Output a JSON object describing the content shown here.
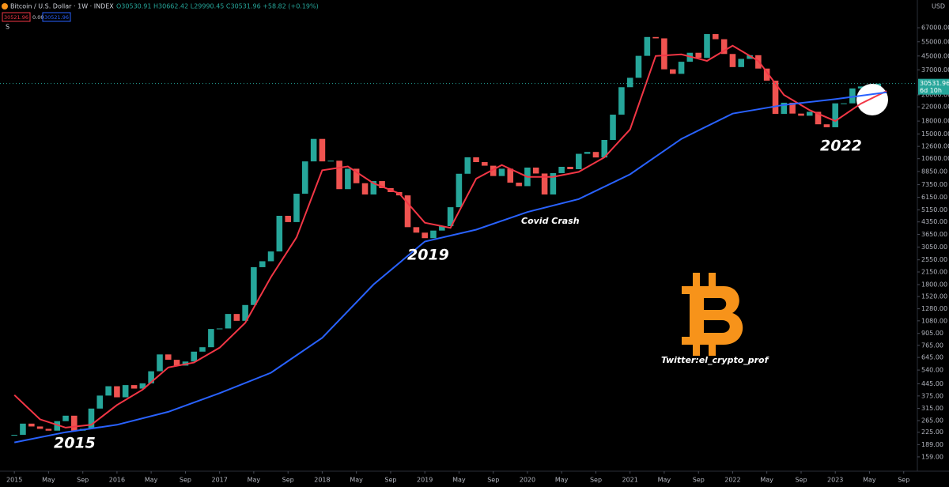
{
  "header": {
    "symbol": "Bitcoin / U.S. Dollar · 1W · INDEX",
    "ohlc": "O30530.91 H30662.42 L29990.45 C30531.96 +58.82 (+0.19%)",
    "ma_fast": "30521.96",
    "ma_mid": "0.00",
    "ma_slow": "30521.96",
    "toggle": "S",
    "currency": "USD"
  },
  "chart_data": {
    "type": "candlestick",
    "title": "Bitcoin / U.S. Dollar · 1W · INDEX",
    "log_scale": true,
    "up_color": "#26a69a",
    "down_color": "#ef5350",
    "x": [
      2015,
      2015.083,
      2015.167,
      2015.25,
      2015.333,
      2015.417,
      2015.5,
      2015.583,
      2015.667,
      2015.75,
      2015.833,
      2015.917,
      2016,
      2016.083,
      2016.167,
      2016.25,
      2016.333,
      2016.417,
      2016.5,
      2016.583,
      2016.667,
      2016.75,
      2016.833,
      2016.917,
      2017,
      2017.083,
      2017.167,
      2017.25,
      2017.333,
      2017.417,
      2017.5,
      2017.583,
      2017.667,
      2017.75,
      2017.833,
      2017.917,
      2018,
      2018.083,
      2018.167,
      2018.25,
      2018.333,
      2018.417,
      2018.5,
      2018.583,
      2018.667,
      2018.75,
      2018.833,
      2018.917,
      2019,
      2019.083,
      2019.167,
      2019.25,
      2019.333,
      2019.417,
      2019.5,
      2019.583,
      2019.667,
      2019.75,
      2019.833,
      2019.917,
      2020,
      2020.083,
      2020.167,
      2020.25,
      2020.333,
      2020.417,
      2020.5,
      2020.583,
      2020.667,
      2020.75,
      2020.833,
      2020.917,
      2021,
      2021.083,
      2021.167,
      2021.25,
      2021.333,
      2021.417,
      2021.5,
      2021.583,
      2021.667,
      2021.75,
      2021.833,
      2021.917,
      2022,
      2022.083,
      2022.167,
      2022.25,
      2022.333,
      2022.417,
      2022.5,
      2022.583,
      2022.667,
      2022.75,
      2022.833,
      2022.917,
      2023,
      2023.083,
      2023.167,
      2023.25,
      2023.333,
      2023.417
    ],
    "close": [
      217,
      254,
      244,
      236,
      230,
      263,
      284,
      230,
      236,
      314,
      377,
      430,
      368,
      437,
      416,
      448,
      531,
      673,
      624,
      575,
      609,
      700,
      745,
      963,
      970,
      1190,
      1080,
      1350,
      2300,
      2500,
      2870,
      4740,
      4340,
      6470,
      10200,
      14000,
      10200,
      10300,
      6900,
      9200,
      7500,
      6400,
      7730,
      7000,
      6620,
      6320,
      4040,
      3740,
      3460,
      3850,
      4100,
      5350,
      8570,
      10800,
      10100,
      9600,
      8300,
      9200,
      7560,
      7200,
      9350,
      8600,
      6400,
      8650,
      9450,
      9140,
      11350,
      11650,
      10780,
      13800,
      19700,
      29000,
      33100,
      45100,
      58800,
      57700,
      37300,
      35000,
      41500,
      47100,
      43800,
      61300,
      57000,
      46300,
      38500,
      43200,
      45500,
      37700,
      31800,
      19900,
      23300,
      20000,
      19400,
      20500,
      17200,
      16500,
      23100,
      23100,
      28500,
      29300,
      27200,
      30500
    ],
    "lines": [
      {
        "color": "#f23645",
        "x": [
          2015,
          2015.25,
          2015.5,
          2015.75,
          2016,
          2016.25,
          2016.5,
          2016.75,
          2017,
          2017.25,
          2017.5,
          2017.75,
          2018,
          2018.25,
          2018.5,
          2018.75,
          2019,
          2019.25,
          2019.5,
          2019.75,
          2020,
          2020.25,
          2020.5,
          2020.75,
          2021,
          2021.25,
          2021.5,
          2021.75,
          2022,
          2022.25,
          2022.5,
          2022.75,
          2023,
          2023.25,
          2023.5
        ],
        "values": [
          380,
          270,
          240,
          250,
          330,
          410,
          560,
          600,
          740,
          1050,
          2000,
          3500,
          9000,
          9500,
          7500,
          6500,
          4300,
          4000,
          8000,
          9700,
          8200,
          8200,
          8800,
          10800,
          16000,
          45000,
          46000,
          42000,
          52000,
          42000,
          26000,
          21000,
          18000,
          23000,
          27500
        ]
      },
      {
        "color": "#2962ff",
        "x": [
          2015,
          2015.5,
          2016,
          2016.5,
          2017,
          2017.5,
          2018,
          2018.5,
          2019,
          2019.5,
          2020,
          2020.5,
          2021,
          2021.5,
          2022,
          2022.5,
          2023,
          2023.5
        ],
        "values": [
          195,
          225,
          250,
          300,
          390,
          520,
          850,
          1800,
          3300,
          3900,
          5000,
          6000,
          8500,
          14000,
          20000,
          22600,
          24500,
          27000
        ]
      }
    ],
    "xlim": [
      2014.86,
      2023.8
    ],
    "xticks": [
      2015,
      {
        "value": 2015.333,
        "label": "May"
      },
      {
        "value": 2015.667,
        "label": "Sep"
      },
      2016,
      {
        "value": 2016.333,
        "label": "May"
      },
      {
        "value": 2016.667,
        "label": "Sep"
      },
      2017,
      {
        "value": 2017.333,
        "label": "May"
      },
      {
        "value": 2017.667,
        "label": "Sep"
      },
      2018,
      {
        "value": 2018.333,
        "label": "May"
      },
      {
        "value": 2018.667,
        "label": "Sep"
      },
      2019,
      {
        "value": 2019.333,
        "label": "May"
      },
      {
        "value": 2019.667,
        "label": "Sep"
      },
      2020,
      {
        "value": 2020.333,
        "label": "May"
      },
      {
        "value": 2020.667,
        "label": "Sep"
      },
      2021,
      {
        "value": 2021.333,
        "label": "May"
      },
      {
        "value": 2021.667,
        "label": "Sep"
      },
      2022,
      {
        "value": 2022.333,
        "label": "May"
      },
      {
        "value": 2022.667,
        "label": "Sep"
      },
      2023,
      {
        "value": 2023.333,
        "label": "May"
      },
      {
        "value": 2023.667,
        "label": "Sep"
      }
    ],
    "ylim": [
      130,
      99000
    ],
    "yticks": [
      {
        "value": 67000,
        "label": "67000.00"
      },
      {
        "value": 55000,
        "label": "55000.00"
      },
      {
        "value": 45000,
        "label": "45000.00"
      },
      {
        "value": 37000,
        "label": "37000.00"
      },
      {
        "value": 26000,
        "label": "26000.00"
      },
      {
        "value": 22000,
        "label": "22000.00"
      },
      {
        "value": 18000,
        "label": "18000.00"
      },
      {
        "value": 15000,
        "label": "15000.00"
      },
      {
        "value": 12600,
        "label": "12600.00"
      },
      {
        "value": 10600,
        "label": "10600.00"
      },
      {
        "value": 8850,
        "label": "8850.00"
      },
      {
        "value": 7350,
        "label": "7350.00"
      },
      {
        "value": 6150,
        "label": "6150.00"
      },
      {
        "value": 5150,
        "label": "5150.00"
      },
      {
        "value": 4350,
        "label": "4350.00"
      },
      {
        "value": 3650,
        "label": "3650.00"
      },
      {
        "value": 3050,
        "label": "3050.00"
      },
      {
        "value": 2550,
        "label": "2550.00"
      },
      {
        "value": 2150,
        "label": "2150.00"
      },
      {
        "value": 1800,
        "label": "1800.00"
      },
      {
        "value": 1520,
        "label": "1520.00"
      },
      {
        "value": 1280,
        "label": "1280.00"
      },
      {
        "value": 1080,
        "label": "1080.00"
      },
      {
        "value": 905,
        "label": "905.00"
      },
      {
        "value": 765,
        "label": "765.00"
      },
      {
        "value": 645,
        "label": "645.00"
      },
      {
        "value": 540,
        "label": "540.00"
      },
      {
        "value": 445,
        "label": "445.00"
      },
      {
        "value": 375,
        "label": "375.00"
      },
      {
        "value": 315,
        "label": "315.00"
      },
      {
        "value": 265,
        "label": "265.00"
      },
      {
        "value": 225,
        "label": "225.00"
      },
      {
        "value": 189,
        "label": "189.00"
      },
      {
        "value": 159,
        "label": "159.00"
      }
    ],
    "last_price": {
      "value": 30531.96,
      "label": "30531.96"
    },
    "countdown": "6d 10h",
    "annotations": [
      "2015",
      "2019",
      "Covid Crash",
      "2022"
    ],
    "watermark": "Twitter:el_crypto_prof"
  }
}
